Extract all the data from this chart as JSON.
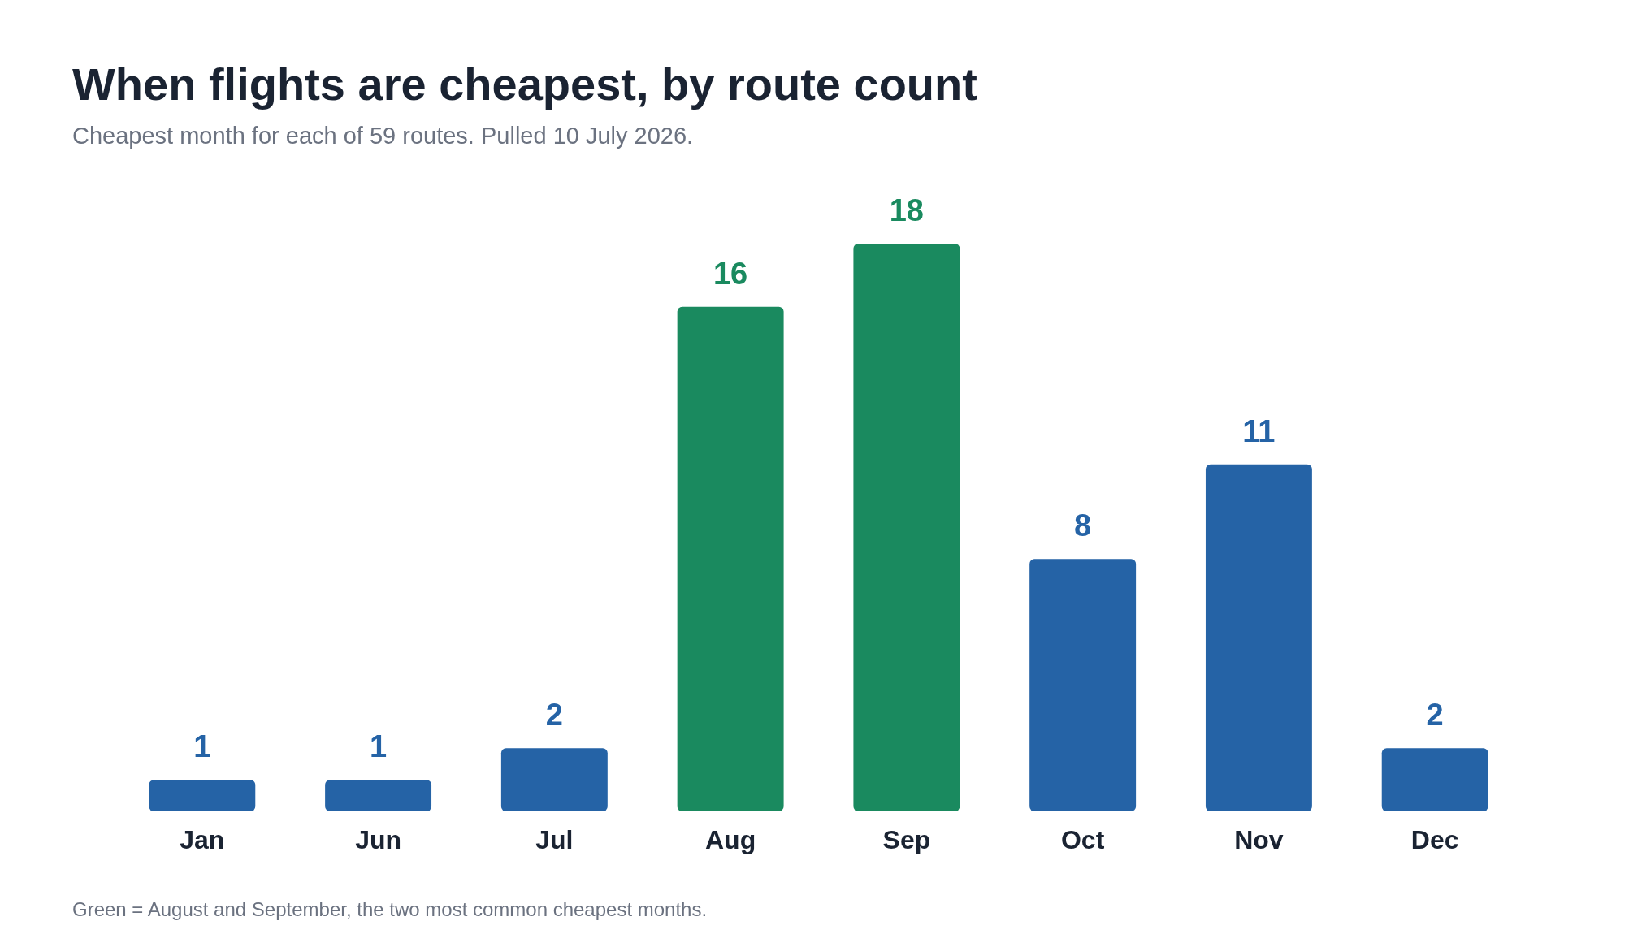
{
  "chart_data": {
    "type": "bar",
    "title": "When flights are cheapest, by route count",
    "subtitle": "Cheapest month for each of 59 routes. Pulled 10 July 2026.",
    "categories": [
      "Jan",
      "Jun",
      "Jul",
      "Aug",
      "Sep",
      "Oct",
      "Nov",
      "Dec"
    ],
    "values": [
      1,
      1,
      2,
      16,
      18,
      8,
      11,
      2
    ],
    "colors": [
      "#2563a6",
      "#2563a6",
      "#2563a6",
      "#1a8a5f",
      "#1a8a5f",
      "#2563a6",
      "#2563a6",
      "#2563a6"
    ],
    "data_labels": true,
    "annotations": [
      "Green = August and September, the two most common cheapest months."
    ]
  }
}
